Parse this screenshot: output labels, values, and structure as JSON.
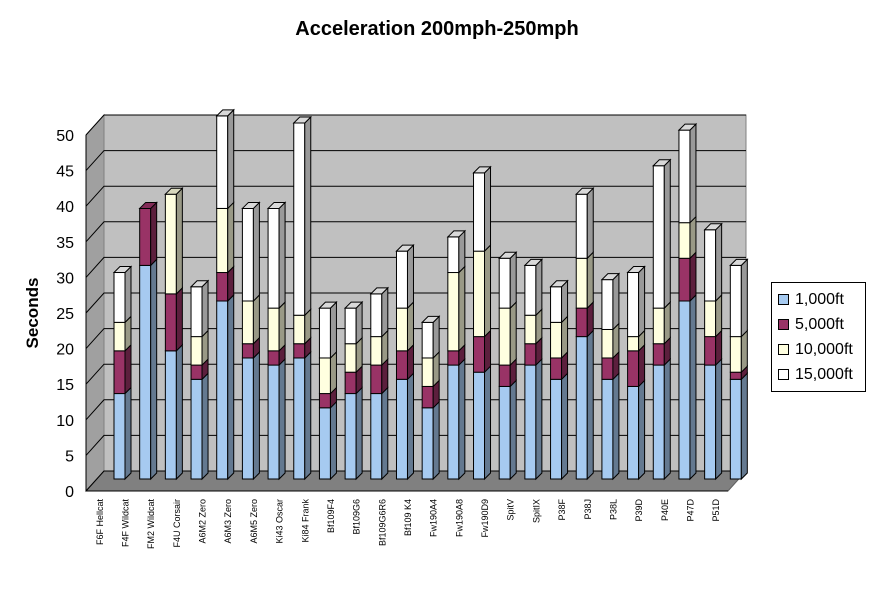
{
  "chart_data": {
    "type": "bar",
    "title": "Acceleration 200mph-250mph",
    "ylabel": "Seconds",
    "xlabel": "",
    "ylim": [
      0,
      50
    ],
    "yticks": [
      0,
      5,
      10,
      15,
      20,
      25,
      30,
      35,
      40,
      45,
      50
    ],
    "grid": true,
    "legend_position": "right",
    "categories": [
      "F6F Hellcat",
      "F4F Wildcat",
      "FM2 Wildcat",
      "F4U Corsair",
      "A6M2 Zero",
      "A6M3 Zero",
      "A6M5 Zero",
      "Ki43 Oscar",
      "Ki84 Frank",
      "Bf109F4",
      "Bf109G6",
      "Bf109G6R6",
      "Bf109 K4",
      "Fw190A4",
      "Fw190A8",
      "Fw190D9",
      "SpitV",
      "SpitIX",
      "P38F",
      "P38J",
      "P38L",
      "P39D",
      "P40E",
      "P47D",
      "P51D"
    ],
    "series": [
      {
        "name": "1,000ft",
        "color": "#a6caf0",
        "values": [
          12,
          30,
          18,
          14,
          25,
          17,
          16,
          17,
          10,
          12,
          12,
          14,
          10,
          16,
          15,
          13,
          16,
          14,
          20,
          14,
          13,
          16,
          25,
          16,
          14
        ]
      },
      {
        "name": "5,000ft",
        "color": "#993366",
        "values": [
          18,
          38,
          26,
          16,
          29,
          19,
          18,
          19,
          12,
          15,
          16,
          18,
          13,
          18,
          20,
          16,
          19,
          17,
          24,
          17,
          18,
          19,
          31,
          20,
          15
        ]
      },
      {
        "name": "10,000ft",
        "color": "#ffffe0",
        "values": [
          22,
          38,
          40,
          20,
          38,
          25,
          24,
          23,
          17,
          19,
          20,
          24,
          17,
          29,
          32,
          24,
          23,
          22,
          31,
          21,
          20,
          24,
          36,
          25,
          20
        ]
      },
      {
        "name": "15,000ft",
        "color": "#ffffff",
        "values": [
          29,
          38,
          40,
          27,
          51,
          38,
          38,
          50,
          24,
          24,
          26,
          32,
          22,
          34,
          43,
          31,
          30,
          27,
          40,
          28,
          29,
          44,
          49,
          35,
          30
        ]
      }
    ]
  }
}
